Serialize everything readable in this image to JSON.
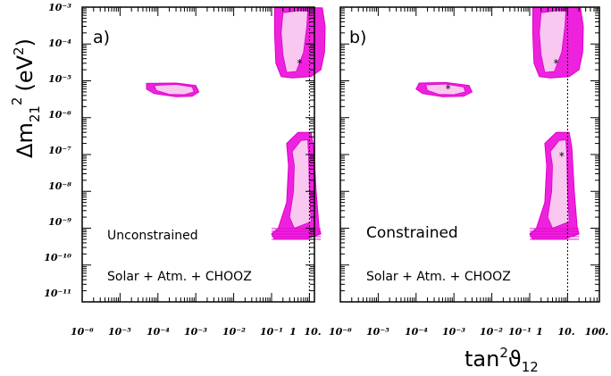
{
  "chart_data": {
    "type": "scatter",
    "x_axis": {
      "label_base": "tan",
      "label_sup": "2",
      "label_main": "ϑ",
      "label_sub": "12",
      "scale": "log",
      "range": [
        1e-06,
        100
      ],
      "tick_labels_a": [
        "10⁻⁶",
        "10⁻⁵",
        "10⁻⁴",
        "10⁻³",
        "10⁻²",
        "10⁻¹",
        "1",
        "10."
      ],
      "tick_labels_b": [
        "10⁻⁶",
        "10⁻⁵",
        "10⁻⁴",
        "10⁻³",
        "10⁻²",
        "10⁻¹",
        "1",
        "10.",
        "100."
      ]
    },
    "y_axis": {
      "label_main": "Δm",
      "label_sub": "21",
      "label_sup": "2",
      "label_unit": "(eV",
      "label_unit_sup": "2",
      "label_unit_close": ")",
      "scale": "log",
      "range": [
        1e-11,
        0.001
      ],
      "tick_labels": [
        "10⁻³",
        "10⁻⁴",
        "10⁻⁵",
        "10⁻⁶",
        "10⁻⁷",
        "10⁻⁸",
        "10⁻⁹",
        "10⁻¹⁰",
        "10⁻¹¹"
      ]
    },
    "reference_line_x": 1,
    "colors": {
      "outer_region": "#ee22dd",
      "inner_region": "#f8c8f0",
      "outline": "#dd00cc"
    },
    "panels": [
      {
        "tag": "a)",
        "annotation_1": "Unconstrained",
        "annotation_2": "Solar + Atm. + CHOOZ",
        "best_fit_points": [
          {
            "x": 0.55,
            "y": 3e-05
          }
        ],
        "regions": [
          {
            "outer": [
              [
                0.12,
                0.00095
              ],
              [
                0.2,
                0.001
              ],
              [
                0.35,
                0.001
              ],
              [
                0.9,
                0.00098
              ],
              [
                2.2,
                0.00095
              ],
              [
                2.6,
                0.0003
              ],
              [
                2.5,
                6e-05
              ],
              [
                2.0,
                2e-05
              ],
              [
                1.1,
                1.3e-05
              ],
              [
                0.35,
                1.2e-05
              ],
              [
                0.18,
                1.3e-05
              ],
              [
                0.13,
                3e-05
              ],
              [
                0.12,
                0.0002
              ]
            ],
            "inner": [
              [
                0.2,
                0.0007
              ],
              [
                0.5,
                0.0008
              ],
              [
                0.9,
                0.0008
              ],
              [
                0.85,
                0.0003
              ],
              [
                0.7,
                6e-05
              ],
              [
                0.45,
                1.8e-05
              ],
              [
                0.25,
                1.7e-05
              ],
              [
                0.2,
                5e-05
              ],
              [
                0.18,
                0.0002
              ]
            ]
          },
          {
            "outer": [
              [
                5e-05,
                8.5e-06
              ],
              [
                0.0003,
                8.7e-06
              ],
              [
                0.001,
                7.5e-06
              ],
              [
                0.0012,
                5e-06
              ],
              [
                0.0008,
                3.8e-06
              ],
              [
                0.0003,
                3.7e-06
              ],
              [
                8e-05,
                4.5e-06
              ],
              [
                5e-05,
                6e-06
              ]
            ],
            "inner": [
              [
                8e-05,
                7.5e-06
              ],
              [
                0.0003,
                8e-06
              ],
              [
                0.0008,
                6.8e-06
              ],
              [
                0.0009,
                5e-06
              ],
              [
                0.0005,
                4.2e-06
              ],
              [
                0.0002,
                4.3e-06
              ],
              [
                9e-05,
                5.5e-06
              ]
            ]
          },
          {
            "outer": [
              [
                0.25,
                2e-07
              ],
              [
                0.5,
                4e-07
              ],
              [
                1.1,
                4e-07
              ],
              [
                1.3,
                1.5e-07
              ],
              [
                1.5,
                1e-08
              ],
              [
                1.8,
                1e-09
              ],
              [
                2.0,
                7e-10
              ],
              [
                0.8,
                5e-10
              ],
              [
                0.12,
                5e-10
              ],
              [
                0.1,
                7e-10
              ],
              [
                0.15,
                1e-09
              ],
              [
                0.25,
                5e-09
              ],
              [
                0.28,
                5e-08
              ]
            ],
            "inner": [
              [
                0.35,
                1.2e-07
              ],
              [
                0.6,
                2.4e-07
              ],
              [
                0.9,
                2.5e-07
              ],
              [
                0.95,
                1e-07
              ],
              [
                1.0,
                1e-08
              ],
              [
                1.1,
                1.5e-09
              ],
              [
                0.4,
                1e-09
              ],
              [
                0.3,
                2e-09
              ],
              [
                0.38,
                1e-08
              ],
              [
                0.4,
                5e-08
              ]
            ]
          }
        ]
      },
      {
        "tag": "b)",
        "annotation_1": "Constrained",
        "annotation_2": "Solar + Atm. + CHOOZ",
        "best_fit_points": [
          {
            "x": 0.5,
            "y": 3e-05
          },
          {
            "x": 0.0007,
            "y": 6e-06
          },
          {
            "x": 0.7,
            "y": 9e-08
          }
        ],
        "regions": [
          {
            "outer": [
              [
                0.12,
                0.00095
              ],
              [
                0.2,
                0.001
              ],
              [
                0.35,
                0.001
              ],
              [
                0.9,
                0.00098
              ],
              [
                2.2,
                0.00095
              ],
              [
                2.6,
                0.0003
              ],
              [
                2.5,
                6e-05
              ],
              [
                2.0,
                2e-05
              ],
              [
                1.1,
                1.3e-05
              ],
              [
                0.35,
                1.2e-05
              ],
              [
                0.18,
                1.3e-05
              ],
              [
                0.13,
                3e-05
              ],
              [
                0.12,
                0.0002
              ]
            ],
            "inner": [
              [
                0.2,
                0.0007
              ],
              [
                0.5,
                0.0008
              ],
              [
                0.9,
                0.0008
              ],
              [
                0.85,
                0.0003
              ],
              [
                0.7,
                6e-05
              ],
              [
                0.45,
                1.8e-05
              ],
              [
                0.25,
                1.7e-05
              ],
              [
                0.2,
                5e-05
              ],
              [
                0.18,
                0.0002
              ]
            ]
          },
          {
            "outer": [
              [
                0.00012,
                8.7e-06
              ],
              [
                0.0006,
                9e-06
              ],
              [
                0.0025,
                7.5e-06
              ],
              [
                0.003,
                5e-06
              ],
              [
                0.0018,
                3.8e-06
              ],
              [
                0.0005,
                3.7e-06
              ],
              [
                0.00015,
                4.5e-06
              ],
              [
                0.0001,
                6e-06
              ]
            ],
            "inner": [
              [
                0.00018,
                7.8e-06
              ],
              [
                0.0006,
                8.2e-06
              ],
              [
                0.0018,
                6.8e-06
              ],
              [
                0.002,
                5e-06
              ],
              [
                0.001,
                4.2e-06
              ],
              [
                0.0004,
                4.3e-06
              ],
              [
                0.0002,
                5.5e-06
              ]
            ]
          },
          {
            "outer": [
              [
                0.25,
                2e-07
              ],
              [
                0.5,
                4e-07
              ],
              [
                1.1,
                4e-07
              ],
              [
                1.3,
                1.5e-07
              ],
              [
                1.5,
                1e-08
              ],
              [
                1.8,
                1e-09
              ],
              [
                2.0,
                7e-10
              ],
              [
                0.8,
                5e-10
              ],
              [
                0.12,
                5e-10
              ],
              [
                0.1,
                7e-10
              ],
              [
                0.15,
                1e-09
              ],
              [
                0.25,
                5e-09
              ],
              [
                0.28,
                5e-08
              ]
            ],
            "inner": [
              [
                0.35,
                1.2e-07
              ],
              [
                0.6,
                2.4e-07
              ],
              [
                0.9,
                2.5e-07
              ],
              [
                0.95,
                1e-07
              ],
              [
                1.0,
                1e-08
              ],
              [
                1.1,
                1.5e-09
              ],
              [
                0.4,
                1e-09
              ],
              [
                0.3,
                2e-09
              ],
              [
                0.38,
                1e-08
              ],
              [
                0.4,
                5e-08
              ]
            ]
          }
        ]
      }
    ]
  }
}
